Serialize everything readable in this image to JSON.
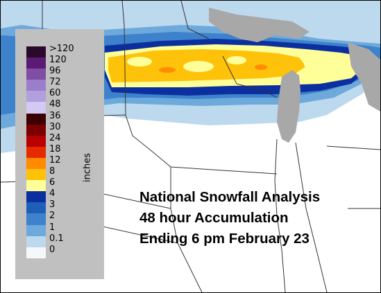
{
  "legend": {
    "unit": "inches",
    "bins": [
      {
        "label": ">120",
        "color": "#2a0a2a"
      },
      {
        "label": "120",
        "color": "#5b1a73"
      },
      {
        "label": "96",
        "color": "#7f4fa6"
      },
      {
        "label": "72",
        "color": "#9a7ec9"
      },
      {
        "label": "60",
        "color": "#b1a0dd"
      },
      {
        "label": "48",
        "color": "#d2caf2"
      },
      {
        "label": "36",
        "color": "#3d0000"
      },
      {
        "label": "30",
        "color": "#7d0000"
      },
      {
        "label": "24",
        "color": "#b90000"
      },
      {
        "label": "18",
        "color": "#e62a00"
      },
      {
        "label": "12",
        "color": "#ff8c00"
      },
      {
        "label": "8",
        "color": "#ffc20a"
      },
      {
        "label": "6",
        "color": "#ffff99"
      },
      {
        "label": "4",
        "color": "#0c2fa0"
      },
      {
        "label": "3",
        "color": "#1f5fb8"
      },
      {
        "label": "2",
        "color": "#3d82cb"
      },
      {
        "label": "1",
        "color": "#6ea9dc"
      },
      {
        "label": "0.1",
        "color": "#bcd9ee"
      },
      {
        "label": "0",
        "color": "#f4f7fb"
      }
    ]
  },
  "caption": {
    "line1": "National Snowfall Analysis",
    "line2": "48 hour Accumulation",
    "line3": "Ending 6 pm February 23"
  },
  "map": {
    "lake_color": "#a8a8a8",
    "border_color": "#333333"
  }
}
